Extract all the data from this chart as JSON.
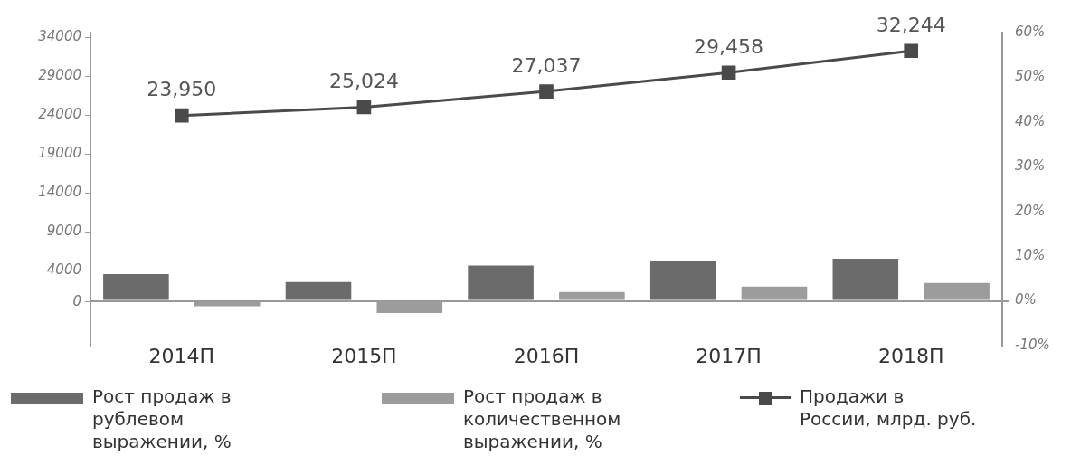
{
  "chart_data": {
    "type": "bar",
    "categories": [
      "2014П",
      "2015П",
      "2016П",
      "2017П",
      "2018П"
    ],
    "series": [
      {
        "name": "Рост продаж в рублевом выражении, %",
        "axis": "y2",
        "color": "#6b6b6b",
        "values": [
          6.0,
          4.2,
          7.9,
          8.9,
          9.4
        ]
      },
      {
        "name": "Рост продаж в количественном выражении, %",
        "axis": "y2",
        "color": "#9c9c9c",
        "values": [
          -1.2,
          -2.7,
          2.0,
          3.2,
          4.0
        ]
      },
      {
        "name": "Продажи в России, млрд. руб.",
        "type": "line",
        "color": "#4a4a4a",
        "values": [
          23950,
          25024,
          27037,
          29458,
          32244
        ],
        "value_labels": [
          "23,950",
          "25,024",
          "27,037",
          "29,458",
          "32,244"
        ]
      }
    ],
    "ylim": [
      -5600,
      34600
    ],
    "yticks": [
      0,
      4000,
      9000,
      14000,
      19000,
      24000,
      29000,
      34000
    ],
    "y2lim": [
      -10,
      60
    ],
    "y2ticks": [
      {
        "value": -10,
        "label": "-10%"
      },
      {
        "value": 0,
        "label": "0%"
      },
      {
        "value": 10,
        "label": "10%"
      },
      {
        "value": 20,
        "label": "20%"
      },
      {
        "value": 30,
        "label": "30%"
      },
      {
        "value": 40,
        "label": "40%"
      },
      {
        "value": 50,
        "label": "50%"
      },
      {
        "value": 60,
        "label": "60%"
      }
    ],
    "legend": "bottom",
    "marker": "square",
    "grid": false
  }
}
